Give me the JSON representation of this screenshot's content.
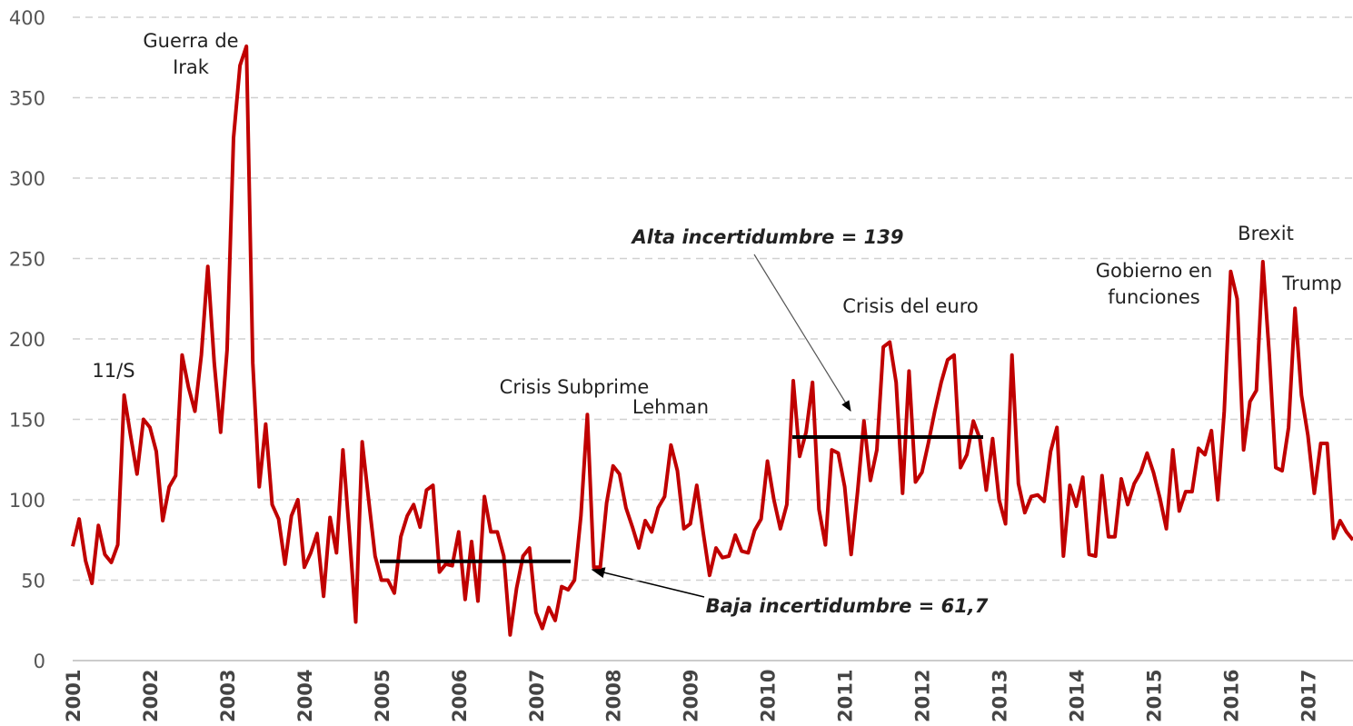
{
  "chart_data": {
    "type": "line",
    "categories": [
      "2001",
      null,
      null,
      null,
      null,
      null,
      null,
      null,
      null,
      null,
      null,
      null,
      "2002",
      null,
      null,
      null,
      null,
      null,
      null,
      null,
      null,
      null,
      null,
      null,
      "2003",
      null,
      null,
      null,
      null,
      null,
      null,
      null,
      null,
      null,
      null,
      null,
      "2004",
      null,
      null,
      null,
      null,
      null,
      null,
      null,
      null,
      null,
      null,
      null,
      "2005",
      null,
      null,
      null,
      null,
      null,
      null,
      null,
      null,
      null,
      null,
      null,
      "2006",
      null,
      null,
      null,
      null,
      null,
      null,
      null,
      null,
      null,
      null,
      null,
      "2007",
      null,
      null,
      null,
      null,
      null,
      null,
      null,
      null,
      null,
      null,
      null,
      "2008",
      null,
      null,
      null,
      null,
      null,
      null,
      null,
      null,
      null,
      null,
      null,
      "2009",
      null,
      null,
      null,
      null,
      null,
      null,
      null,
      null,
      null,
      null,
      null,
      "2010",
      null,
      null,
      null,
      null,
      null,
      null,
      null,
      null,
      null,
      null,
      null,
      "2011",
      null,
      null,
      null,
      null,
      null,
      null,
      null,
      null,
      null,
      null,
      null,
      "2012",
      null,
      null,
      null,
      null,
      null,
      null,
      null,
      null,
      null,
      null,
      null,
      "2013",
      null,
      null,
      null,
      null,
      null,
      null,
      null,
      null,
      null,
      null,
      null,
      "2014",
      null,
      null,
      null,
      null,
      null,
      null,
      null,
      null,
      null,
      null,
      null,
      "2015",
      null,
      null,
      null,
      null,
      null,
      null,
      null,
      null,
      null,
      null,
      null,
      "2016",
      null,
      null,
      null,
      null,
      null,
      null,
      null,
      null,
      null,
      null,
      null,
      "2017",
      null,
      null,
      null,
      null,
      null,
      null,
      null
    ],
    "series": [
      {
        "color": "#c00000",
        "values": [
          71,
          88,
          62,
          48,
          84,
          66,
          61,
          72,
          165,
          140,
          116,
          150,
          145,
          130,
          87,
          108,
          115,
          190,
          170,
          155,
          190,
          245,
          185,
          142,
          193,
          325,
          370,
          382,
          185,
          108,
          147,
          97,
          88,
          60,
          90,
          100,
          58,
          67,
          79,
          40,
          89,
          67,
          131,
          80,
          24,
          136,
          100,
          65,
          50,
          50,
          42,
          77,
          90,
          97,
          83,
          106,
          109,
          55,
          60,
          59,
          80,
          38,
          74,
          37,
          102,
          80,
          80,
          65,
          16,
          45,
          65,
          70,
          30,
          20,
          33,
          25,
          46,
          44,
          50,
          90,
          153,
          58,
          58,
          98,
          121,
          116,
          95,
          83,
          70,
          87,
          80,
          95,
          102,
          134,
          118,
          82,
          85,
          109,
          80,
          53,
          70,
          64,
          65,
          78,
          68,
          67,
          81,
          88,
          124,
          100,
          82,
          97,
          174,
          127,
          142,
          173,
          94,
          72,
          131,
          129,
          108,
          66,
          105,
          149,
          112,
          131,
          195,
          198,
          173,
          104,
          180,
          111,
          117,
          135,
          155,
          173,
          187,
          190,
          120,
          128,
          149,
          138,
          106,
          138,
          100,
          85,
          190,
          110,
          92,
          102,
          103,
          99,
          130,
          145,
          65,
          109,
          96,
          114,
          66,
          65,
          115,
          77,
          77,
          113,
          97,
          110,
          117,
          129,
          117,
          101,
          82,
          131,
          93,
          105,
          105,
          132,
          128,
          143,
          100,
          155,
          242,
          225,
          131,
          161,
          168,
          248,
          190,
          120,
          118,
          145,
          219,
          165,
          140,
          104,
          135,
          135,
          76,
          87,
          80,
          75
        ]
      }
    ],
    "ylim": [
      0,
      400
    ],
    "yticks": [
      0,
      50,
      100,
      150,
      200,
      250,
      300,
      350,
      400
    ],
    "grid": true,
    "reference_lines": [
      {
        "label": "Baja incertidumbre = 61,7",
        "value": 61.7
      },
      {
        "label": "Alta incertidumbre = 139",
        "value": 139
      }
    ],
    "annotations": [
      {
        "text": [
          "11/S"
        ]
      },
      {
        "text": [
          "Guerra de",
          "Irak"
        ]
      },
      {
        "text": [
          "Crisis Subprime"
        ]
      },
      {
        "text": [
          "Lehman"
        ]
      },
      {
        "text": [
          "Crisis del euro"
        ]
      },
      {
        "text": [
          "Gobierno en",
          "funciones"
        ]
      },
      {
        "text": [
          "Brexit"
        ]
      },
      {
        "text": [
          "Trump"
        ]
      }
    ]
  }
}
